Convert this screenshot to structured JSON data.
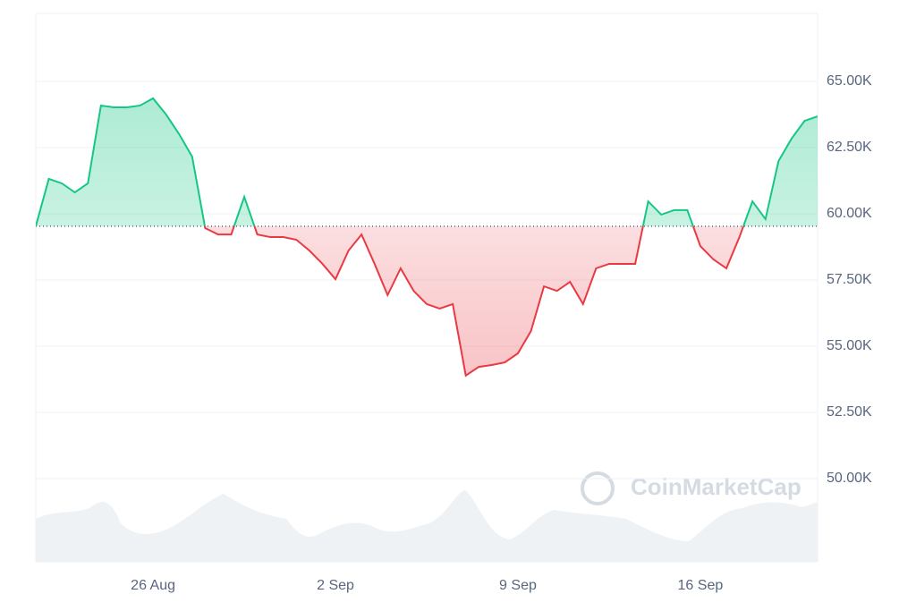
{
  "chart_data": {
    "type": "line",
    "categories": [
      null,
      null,
      null,
      null,
      null,
      null,
      null,
      null,
      null,
      "26 Aug",
      null,
      null,
      null,
      null,
      null,
      null,
      null,
      null,
      null,
      null,
      null,
      null,
      null,
      "2 Sep",
      null,
      null,
      null,
      null,
      null,
      null,
      null,
      null,
      null,
      null,
      null,
      null,
      null,
      "9 Sep",
      null,
      null,
      null,
      null,
      null,
      null,
      null,
      null,
      null,
      null,
      null,
      null,
      null,
      "16 Sep",
      null,
      null,
      null,
      null,
      null,
      null,
      null,
      null,
      null
    ],
    "values": [
      59530,
      61320,
      61150,
      60810,
      61150,
      64090,
      64020,
      64020,
      64090,
      64360,
      63750,
      63010,
      62160,
      59460,
      59220,
      59220,
      60640,
      59220,
      59120,
      59120,
      59020,
      58610,
      58110,
      57530,
      58610,
      59220,
      58110,
      56930,
      57940,
      57090,
      56590,
      56420,
      56590,
      53890,
      54220,
      54290,
      54390,
      54730,
      55570,
      57260,
      57090,
      57430,
      56590,
      57940,
      58110,
      58110,
      58110,
      60470,
      59970,
      60140,
      60140,
      58780,
      58280,
      57940,
      59120,
      60470,
      59800,
      61990,
      62840,
      63510,
      63680
    ],
    "baseline": 59530,
    "up_color": "#16c784",
    "down_color": "#ea3943",
    "ylim": [
      46858,
      67568
    ],
    "yticks": [
      {
        "value": 50000,
        "label": "50.00K"
      },
      {
        "value": 52500,
        "label": "52.50K"
      },
      {
        "value": 55000,
        "label": "55.00K"
      },
      {
        "value": 57500,
        "label": "57.50K"
      },
      {
        "value": 60000,
        "label": "60.00K"
      },
      {
        "value": 62500,
        "label": "62.50K"
      },
      {
        "value": 65000,
        "label": "65.00K"
      }
    ],
    "grid": true,
    "watermark": "CoinMarketCap"
  }
}
